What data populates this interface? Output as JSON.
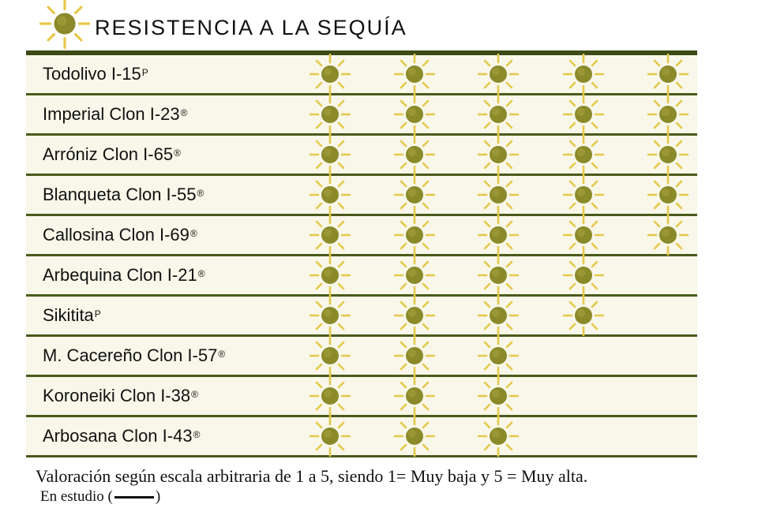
{
  "title": "RESISTENCIA A LA SEQUÍA",
  "icon": "sun-icon",
  "colors": {
    "sun": "#8a8a2a",
    "rays": "#e6c84a",
    "row_bg": "#f8f7e9",
    "rule": "#4a5a1c"
  },
  "chart_data": {
    "type": "table",
    "title": "RESISTENCIA A LA SEQUÍA",
    "scale_max": 5,
    "rows": [
      {
        "name": "Todolivo I-15",
        "mark": "P",
        "value": 5
      },
      {
        "name": "Imperial Clon I-23",
        "mark": "®",
        "value": 5
      },
      {
        "name": "Arróniz Clon I-65",
        "mark": "®",
        "value": 5
      },
      {
        "name": "Blanqueta Clon I-55",
        "mark": "®",
        "value": 5
      },
      {
        "name": "Callosina Clon I-69",
        "mark": "®",
        "value": 5
      },
      {
        "name": "Arbequina Clon I-21",
        "mark": "®",
        "value": 4
      },
      {
        "name": "Sikitita",
        "mark": "P",
        "value": 4
      },
      {
        "name": "M. Cacereño Clon I-57",
        "mark": "®",
        "value": 3
      },
      {
        "name": "Koroneiki Clon I-38",
        "mark": "®",
        "value": 3
      },
      {
        "name": "Arbosana Clon I-43",
        "mark": "®",
        "value": 3
      }
    ]
  },
  "footer": {
    "note": "Valoración según escala arbitraria de 1 a 5, siendo 1= Muy baja y 5 = Muy alta.",
    "study_open": "En estudio (",
    "study_close": ")"
  }
}
